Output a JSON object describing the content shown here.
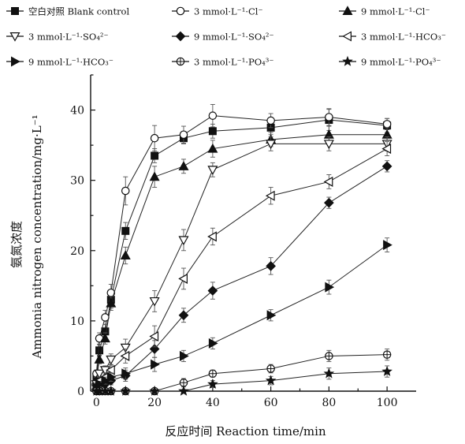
{
  "chart_data": {
    "type": "line",
    "title": "",
    "xlabel": "反应时间 Reaction time/min",
    "ylabel_cn": "氨氮浓度",
    "ylabel": "Ammonia nitrogen concentration/mg·L⁻¹",
    "xlim": [
      -2,
      110
    ],
    "ylim": [
      0,
      45
    ],
    "xticks": [
      0,
      20,
      40,
      60,
      80,
      100
    ],
    "yticks": [
      0,
      10,
      20,
      30,
      40
    ],
    "grid": false,
    "legend_position": "top",
    "series": [
      {
        "name": "空白对照 Blank control",
        "marker": "square-filled",
        "x": [
          0,
          1,
          3,
          5,
          10,
          20,
          30,
          40,
          60,
          80,
          100
        ],
        "y": [
          2.0,
          5.8,
          8.5,
          13.0,
          22.8,
          33.5,
          36.0,
          37.0,
          37.5,
          38.6,
          37.8
        ],
        "err": [
          0.5,
          0.8,
          1.0,
          1.2,
          1.2,
          1.0,
          0.8,
          1.0,
          1.0,
          1.5,
          1.0
        ]
      },
      {
        "name": "3 mmol·L⁻¹·Cl⁻",
        "marker": "circle-open",
        "x": [
          0,
          1,
          3,
          5,
          10,
          20,
          30,
          40,
          60,
          80,
          100
        ],
        "y": [
          2.5,
          7.5,
          10.5,
          14.0,
          28.5,
          36.0,
          36.5,
          39.2,
          38.5,
          39.0,
          38.0
        ],
        "err": [
          0.5,
          0.8,
          1.0,
          1.2,
          2.0,
          1.8,
          1.2,
          1.6,
          1.0,
          1.2,
          0.8
        ]
      },
      {
        "name": "9 mmol·L⁻¹·Cl⁻",
        "marker": "triangle-filled",
        "x": [
          0,
          1,
          3,
          5,
          10,
          20,
          30,
          40,
          60,
          80,
          100
        ],
        "y": [
          1.5,
          4.5,
          7.5,
          12.5,
          19.3,
          30.5,
          32.0,
          34.5,
          35.8,
          36.5,
          36.5
        ],
        "err": [
          0.5,
          0.6,
          0.8,
          1.0,
          1.2,
          1.5,
          1.0,
          1.2,
          1.0,
          1.2,
          1.0
        ]
      },
      {
        "name": "3 mmol·L⁻¹·SO₄²⁻",
        "marker": "triangle-down-open",
        "x": [
          0,
          1,
          3,
          5,
          10,
          20,
          30,
          40,
          60,
          80,
          100
        ],
        "y": [
          1.0,
          2.5,
          3.0,
          4.5,
          6.2,
          12.8,
          21.5,
          31.5,
          35.2,
          35.2,
          35.2
        ],
        "err": [
          0.4,
          0.5,
          0.6,
          0.8,
          1.2,
          1.5,
          1.5,
          1.0,
          1.0,
          1.0,
          1.0
        ]
      },
      {
        "name": "9 mmol·L⁻¹·SO₄²⁻",
        "marker": "diamond-filled",
        "x": [
          0,
          1,
          3,
          5,
          10,
          20,
          30,
          40,
          60,
          80,
          100
        ],
        "y": [
          0.3,
          0.8,
          1.0,
          1.5,
          2.2,
          6.0,
          10.8,
          14.3,
          17.8,
          26.8,
          32.0
        ],
        "err": [
          0.3,
          0.4,
          0.5,
          0.6,
          0.8,
          1.2,
          1.0,
          1.2,
          1.2,
          0.8,
          0.8
        ]
      },
      {
        "name": "3 mmol·L⁻¹·HCO₃⁻",
        "marker": "triangle-left-open",
        "x": [
          0,
          1,
          3,
          5,
          10,
          20,
          30,
          40,
          60,
          80,
          100
        ],
        "y": [
          0.8,
          1.5,
          2.0,
          3.0,
          5.0,
          7.8,
          16.0,
          22.0,
          27.8,
          29.8,
          34.5
        ],
        "err": [
          0.4,
          0.5,
          0.6,
          0.8,
          1.0,
          1.5,
          1.5,
          1.2,
          1.2,
          1.0,
          1.0
        ]
      },
      {
        "name": "9 mmol·L⁻¹·HCO₃⁻",
        "marker": "triangle-right-filled",
        "x": [
          0,
          1,
          3,
          5,
          10,
          20,
          30,
          40,
          60,
          80,
          100
        ],
        "y": [
          0.5,
          1.0,
          1.5,
          2.0,
          2.5,
          3.8,
          5.0,
          6.8,
          10.8,
          14.8,
          20.8
        ],
        "err": [
          0.3,
          0.4,
          0.5,
          0.6,
          0.8,
          1.0,
          0.8,
          0.8,
          0.8,
          1.0,
          1.0
        ]
      },
      {
        "name": "3 mmol·L⁻¹·PO₄³⁻",
        "marker": "circle-cross-open",
        "x": [
          0,
          1,
          3,
          5,
          10,
          20,
          30,
          40,
          60,
          80,
          100
        ],
        "y": [
          0.0,
          0.0,
          0.0,
          0.0,
          0.0,
          0.0,
          1.2,
          2.5,
          3.2,
          5.0,
          5.2
        ],
        "err": [
          0.2,
          0.2,
          0.2,
          0.2,
          0.2,
          0.3,
          0.6,
          0.5,
          0.6,
          0.8,
          0.8
        ]
      },
      {
        "name": "9 mmol·L⁻¹·PO₄³⁻",
        "marker": "star-filled",
        "x": [
          0,
          1,
          3,
          5,
          10,
          20,
          30,
          40,
          60,
          80,
          100
        ],
        "y": [
          0.0,
          0.0,
          0.0,
          0.0,
          0.0,
          0.0,
          0.0,
          1.0,
          1.5,
          2.5,
          2.8
        ],
        "err": [
          0.2,
          0.2,
          0.2,
          0.2,
          0.2,
          0.2,
          0.2,
          0.5,
          0.6,
          0.8,
          0.8
        ]
      }
    ]
  }
}
